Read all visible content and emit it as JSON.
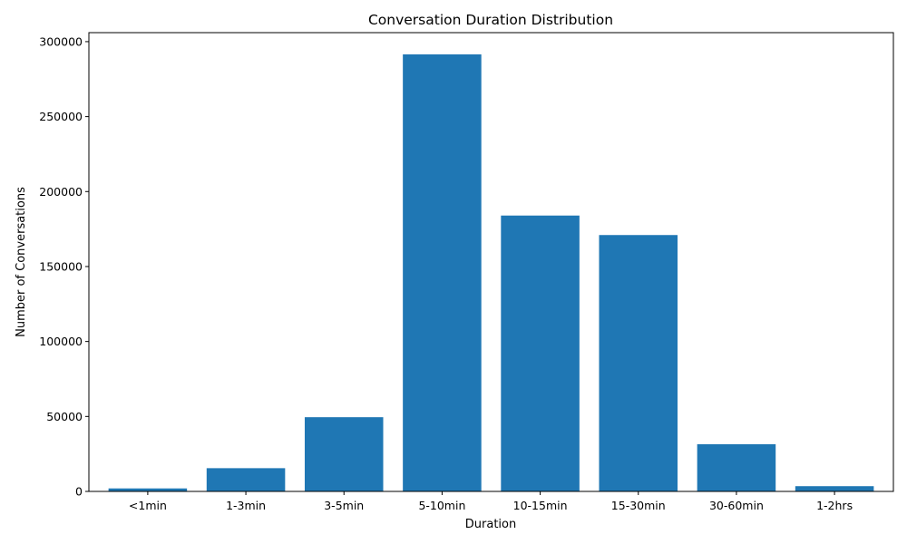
{
  "chart_data": {
    "type": "bar",
    "title": "Conversation Duration Distribution",
    "xlabel": "Duration",
    "ylabel": "Number of Conversations",
    "categories": [
      "<1min",
      "1-3min",
      "3-5min",
      "5-10min",
      "10-15min",
      "15-30min",
      "30-60min",
      "1-2hrs"
    ],
    "values": [
      2000,
      15500,
      49500,
      291500,
      184000,
      171000,
      31500,
      3500
    ],
    "ylim": [
      0,
      306000
    ],
    "yticks": [
      0,
      50000,
      100000,
      150000,
      200000,
      250000,
      300000
    ],
    "ytick_labels": [
      "0",
      "50000",
      "100000",
      "150000",
      "200000",
      "250000",
      "300000"
    ],
    "grid": false,
    "bar_color": "#1f77b4"
  }
}
